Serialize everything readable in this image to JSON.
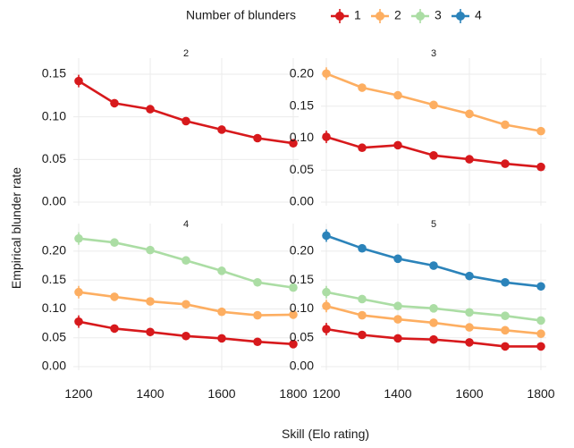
{
  "chart_data": {
    "type": "line",
    "xlabel": "Skill (Elo rating)",
    "ylabel": "Empirical blunder rate",
    "x_ticks": [
      1200,
      1400,
      1600,
      1800
    ],
    "x": [
      1200,
      1300,
      1400,
      1500,
      1600,
      1700,
      1800
    ],
    "xlim": [
      1200,
      1800
    ],
    "legend": {
      "title": "Number of blunders",
      "position": "top",
      "entries": [
        "1",
        "2",
        "3",
        "4"
      ]
    },
    "colors": {
      "1": "#d7191c",
      "2": "#fdae61",
      "3": "#abdda4",
      "4": "#2b83ba"
    },
    "grid": true,
    "panels": [
      {
        "strip": "2",
        "ylim": [
          0,
          0.15
        ],
        "y_ticks": [
          0.0,
          0.05,
          0.1,
          0.15
        ],
        "y_tick_labels": [
          "0.00",
          "0.05",
          "0.10",
          "0.15"
        ],
        "series": [
          {
            "name": "1",
            "values": [
              0.142,
              0.116,
              0.109,
              0.095,
              0.085,
              0.075,
              0.069
            ]
          }
        ]
      },
      {
        "strip": "3",
        "ylim": [
          0,
          0.2
        ],
        "y_ticks": [
          0.0,
          0.05,
          0.1,
          0.15,
          0.2
        ],
        "y_tick_labels": [
          "0.00",
          "0.05",
          "0.10",
          "0.15",
          "0.20"
        ],
        "series": [
          {
            "name": "1",
            "values": [
              0.102,
              0.085,
              0.089,
              0.073,
              0.067,
              0.06,
              0.055
            ]
          },
          {
            "name": "2",
            "values": [
              0.201,
              0.179,
              0.167,
              0.152,
              0.138,
              0.121,
              0.111
            ]
          }
        ]
      },
      {
        "strip": "4",
        "ylim": [
          0,
          0.22
        ],
        "y_ticks": [
          0.0,
          0.05,
          0.1,
          0.15,
          0.2
        ],
        "y_tick_labels": [
          "0.00",
          "0.05",
          "0.10",
          "0.15",
          "0.20"
        ],
        "series": [
          {
            "name": "1",
            "values": [
              0.078,
              0.066,
              0.06,
              0.053,
              0.049,
              0.043,
              0.039
            ]
          },
          {
            "name": "2",
            "values": [
              0.129,
              0.121,
              0.113,
              0.108,
              0.095,
              0.089,
              0.09
            ]
          },
          {
            "name": "3",
            "values": [
              0.222,
              0.215,
              0.202,
              0.184,
              0.166,
              0.146,
              0.137
            ]
          }
        ]
      },
      {
        "strip": "5",
        "ylim": [
          0,
          0.22
        ],
        "y_ticks": [
          0.0,
          0.05,
          0.1,
          0.15,
          0.2
        ],
        "y_tick_labels": [
          "0.00",
          "0.05",
          "0.10",
          "0.15",
          "0.20"
        ],
        "series": [
          {
            "name": "1",
            "values": [
              0.065,
              0.055,
              0.049,
              0.047,
              0.042,
              0.035,
              0.035
            ]
          },
          {
            "name": "2",
            "values": [
              0.105,
              0.089,
              0.082,
              0.076,
              0.068,
              0.063,
              0.057
            ]
          },
          {
            "name": "3",
            "values": [
              0.129,
              0.117,
              0.105,
              0.101,
              0.094,
              0.088,
              0.08
            ]
          },
          {
            "name": "4",
            "values": [
              0.227,
              0.205,
              0.187,
              0.175,
              0.157,
              0.146,
              0.139
            ]
          }
        ]
      }
    ]
  }
}
